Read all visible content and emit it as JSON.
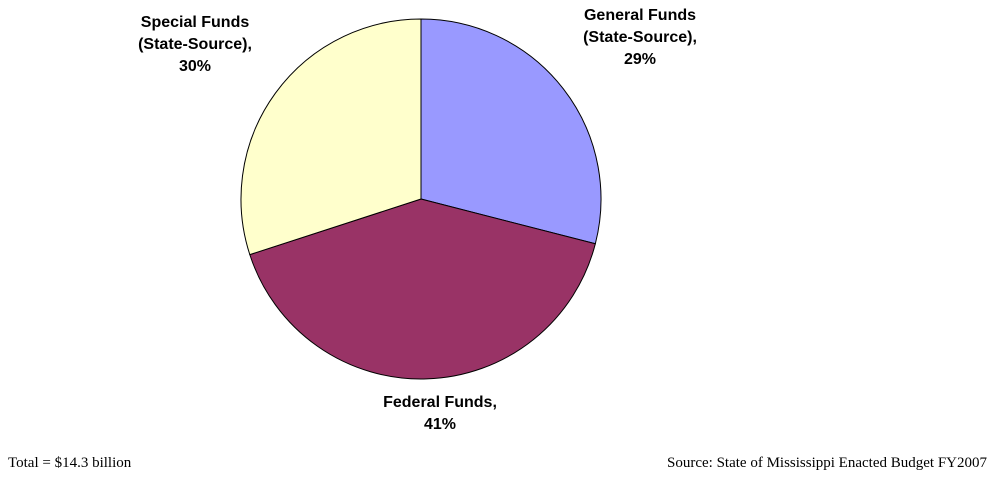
{
  "chart_data": {
    "type": "pie",
    "values": [
      29,
      41,
      30
    ],
    "value_labels": [
      "General Funds (State-Source), 29%",
      "Federal Funds, 41%",
      "Special Funds (State-Source), 30%"
    ],
    "colors": [
      "#9999ff",
      "#993366",
      "#ffffcc"
    ],
    "notes": [
      "Total = $14.3 billion",
      "Source: State of Mississippi Enacted Budget FY2007"
    ]
  }
}
